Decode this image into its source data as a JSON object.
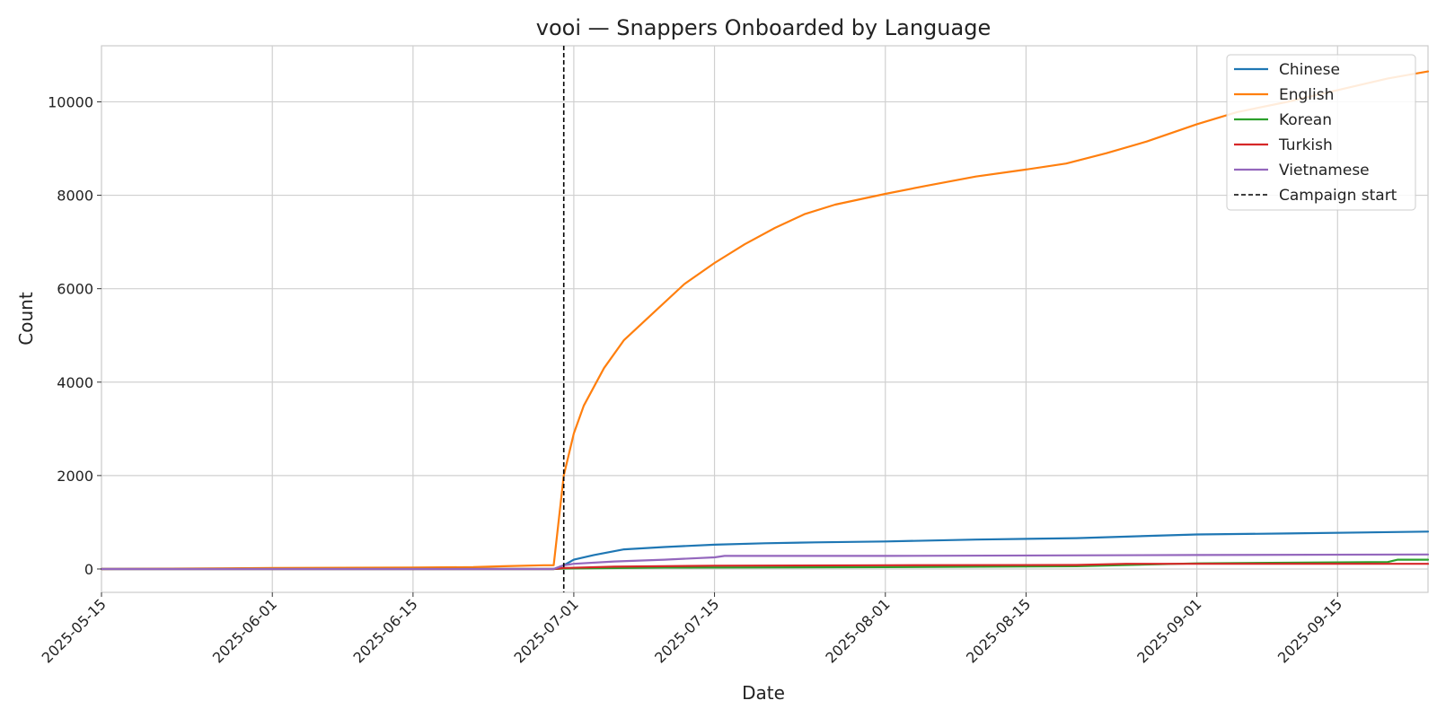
{
  "chart_data": {
    "type": "line",
    "title": "vooi — Snappers Onboarded by Language",
    "xlabel": "Date",
    "ylabel": "Count",
    "x_type": "date",
    "xlim": [
      "2025-05-15",
      "2025-09-24"
    ],
    "ylim": [
      -500,
      11200
    ],
    "x_ticks": [
      "2025-05-15",
      "2025-06-01",
      "2025-06-15",
      "2025-07-01",
      "2025-07-15",
      "2025-08-01",
      "2025-08-15",
      "2025-09-01",
      "2025-09-15"
    ],
    "y_ticks": [
      0,
      2000,
      4000,
      6000,
      8000,
      10000
    ],
    "grid": true,
    "legend_position": "top-right",
    "series": [
      {
        "name": "Chinese",
        "color": "#1f77b4",
        "x": [
          "2025-05-15",
          "2025-06-29",
          "2025-06-30",
          "2025-07-01",
          "2025-07-03",
          "2025-07-06",
          "2025-07-10",
          "2025-07-15",
          "2025-07-20",
          "2025-07-25",
          "2025-08-01",
          "2025-08-10",
          "2025-08-20",
          "2025-09-01",
          "2025-09-10",
          "2025-09-24"
        ],
        "y": [
          0,
          0,
          80,
          200,
          300,
          420,
          470,
          520,
          550,
          570,
          590,
          630,
          660,
          740,
          760,
          800
        ]
      },
      {
        "name": "English",
        "color": "#ff7f0e",
        "x": [
          "2025-05-15",
          "2025-06-01",
          "2025-06-15",
          "2025-06-21",
          "2025-06-24",
          "2025-06-28",
          "2025-06-29",
          "2025-06-30",
          "2025-07-01",
          "2025-07-02",
          "2025-07-04",
          "2025-07-06",
          "2025-07-09",
          "2025-07-12",
          "2025-07-15",
          "2025-07-18",
          "2025-07-21",
          "2025-07-24",
          "2025-07-27",
          "2025-08-01",
          "2025-08-05",
          "2025-08-10",
          "2025-08-15",
          "2025-08-19",
          "2025-08-23",
          "2025-08-27",
          "2025-09-01",
          "2025-09-05",
          "2025-09-10",
          "2025-09-15",
          "2025-09-20",
          "2025-09-24"
        ],
        "y": [
          0,
          20,
          30,
          40,
          60,
          80,
          80,
          2000,
          2900,
          3500,
          4300,
          4900,
          5500,
          6100,
          6550,
          6950,
          7300,
          7600,
          7800,
          8030,
          8200,
          8400,
          8550,
          8680,
          8900,
          9150,
          9520,
          9780,
          10000,
          10250,
          10500,
          10650
        ]
      },
      {
        "name": "Korean",
        "color": "#2ca02c",
        "x": [
          "2025-05-15",
          "2025-06-29",
          "2025-06-30",
          "2025-07-10",
          "2025-08-01",
          "2025-08-20",
          "2025-09-01",
          "2025-09-20",
          "2025-09-21",
          "2025-09-24"
        ],
        "y": [
          0,
          0,
          10,
          30,
          40,
          60,
          120,
          150,
          200,
          200
        ]
      },
      {
        "name": "Turkish",
        "color": "#d62728",
        "x": [
          "2025-05-15",
          "2025-06-29",
          "2025-06-30",
          "2025-07-05",
          "2025-07-15",
          "2025-08-01",
          "2025-08-20",
          "2025-08-25",
          "2025-09-01",
          "2025-09-24"
        ],
        "y": [
          0,
          0,
          20,
          50,
          70,
          80,
          85,
          110,
          110,
          110
        ]
      },
      {
        "name": "Vietnamese",
        "color": "#9467bd",
        "x": [
          "2025-05-15",
          "2025-06-29",
          "2025-06-30",
          "2025-07-01",
          "2025-07-05",
          "2025-07-10",
          "2025-07-15",
          "2025-07-16",
          "2025-08-01",
          "2025-09-01",
          "2025-09-24"
        ],
        "y": [
          0,
          0,
          80,
          110,
          160,
          200,
          250,
          280,
          280,
          300,
          310
        ]
      }
    ],
    "vline": {
      "name": "Campaign start",
      "x": "2025-06-30",
      "color": "#000000",
      "style": "dashed"
    }
  }
}
